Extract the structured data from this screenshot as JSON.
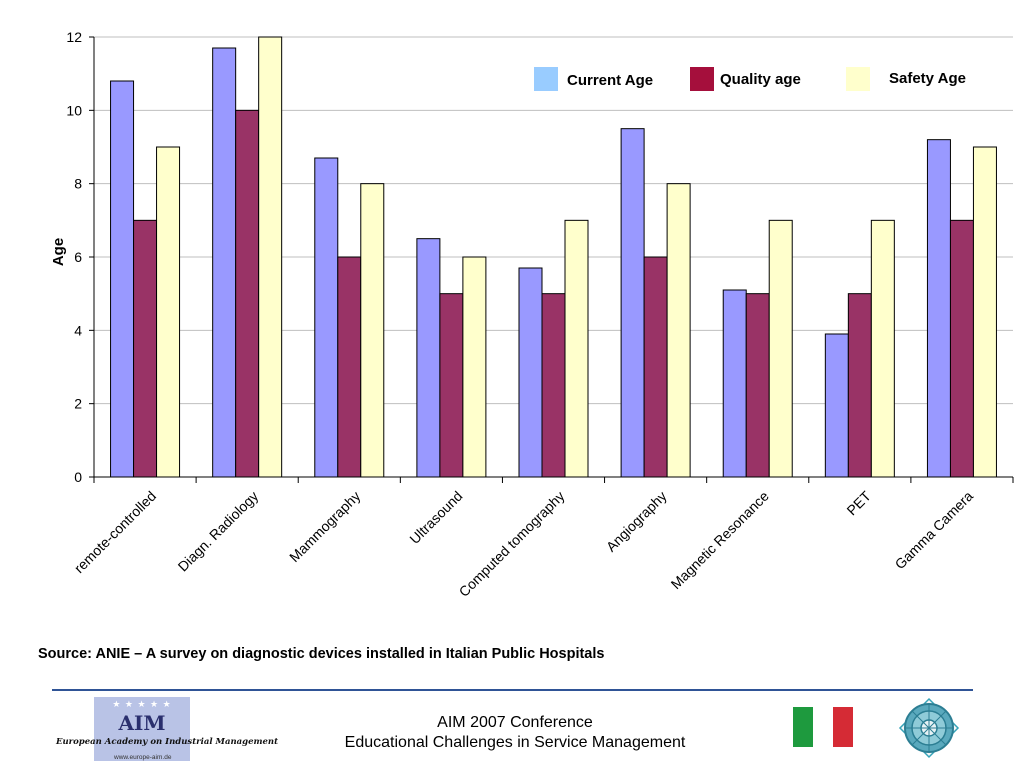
{
  "chart_data": {
    "type": "bar",
    "categories": [
      "remote-controlled",
      "Diagn. Radiology",
      "Mammography",
      "Ultrasound",
      "Computed tomography",
      "Angiography",
      "Magnetic Resonance",
      "PET",
      "Gamma Camera"
    ],
    "series": [
      {
        "name": "Current Age",
        "values": [
          10.8,
          11.7,
          8.7,
          6.5,
          5.7,
          9.5,
          5.1,
          3.9,
          9.2
        ],
        "color": "#9999ff"
      },
      {
        "name": "Quality age",
        "values": [
          7,
          10,
          6,
          5,
          5,
          6,
          5,
          5,
          7
        ],
        "color": "#993366"
      },
      {
        "name": "Safety Age",
        "values": [
          9,
          12,
          8,
          6,
          7,
          8,
          7,
          7,
          9
        ],
        "color": "#ffffcc"
      }
    ],
    "ylabel": "Age",
    "ylim": [
      0,
      12
    ],
    "yticks": [
      "0",
      "2",
      "4",
      "6",
      "8",
      "10",
      "12"
    ],
    "grid": true,
    "legend_position": "top-right"
  },
  "legend_colors": {
    "current": "#99ccff",
    "quality": "#a50f3c",
    "safety": "#ffffcc"
  },
  "source_text": "Source: ANIE – A survey on diagnostic devices installed in Italian Public Hospitals",
  "footer": {
    "line1": "AIM 2007 Conference",
    "line2": "Educational Challenges in Service Management"
  },
  "logo": {
    "name": "AIM",
    "subtitle": "European Academy on Industrial Management",
    "url": "www.europe-aim.de"
  },
  "icons": {
    "flag": "italian-flag-icon",
    "emblem": "gear-globe-emblem-icon"
  }
}
